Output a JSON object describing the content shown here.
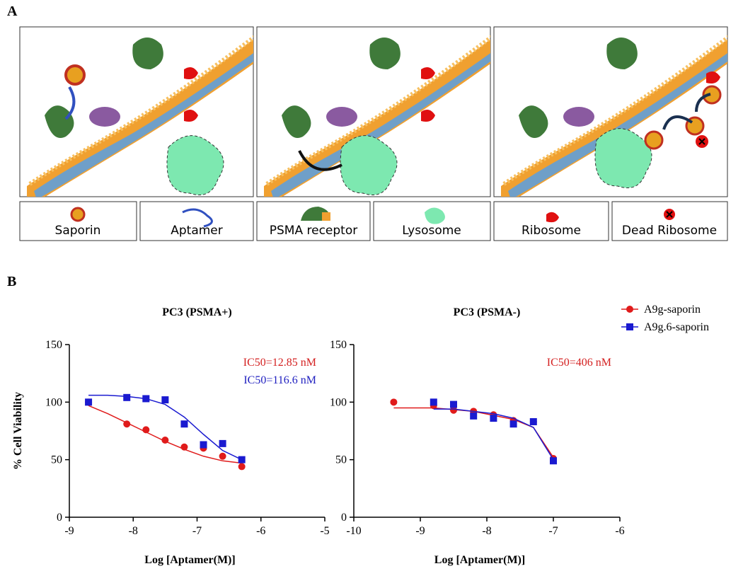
{
  "panel_labels": [
    "A",
    "B"
  ],
  "legend_items": [
    "Saporin",
    "Aptamer",
    "PSMA receptor",
    "Lysosome",
    "Ribosome",
    "Dead Ribosome"
  ],
  "chart_data": [
    {
      "type": "scatter",
      "title": "PC3 (PSMA+)",
      "x_label": "Log [Aptamer(M)]",
      "y_label": "% Cell Viability",
      "xlim": [
        -9,
        -5
      ],
      "xticks": [
        -9,
        -8,
        -7,
        -6,
        -5
      ],
      "ylim": [
        0,
        150
      ],
      "yticks": [
        0,
        50,
        100,
        150
      ],
      "annotations": [
        {
          "text": "IC50=12.85 nM",
          "color": "#d42020"
        },
        {
          "text": "IC50=116.6 nM",
          "color": "#2020c0"
        }
      ],
      "series": [
        {
          "color": "#e01b1b",
          "marker": "circle",
          "x": [
            -8.7,
            -8.1,
            -7.8,
            -7.5,
            -7.2,
            -6.9,
            -6.6,
            -6.3
          ],
          "values": [
            100,
            81,
            76,
            67,
            61,
            60,
            53,
            44
          ],
          "fit_x": [
            -8.7,
            -8.4,
            -8.1,
            -7.8,
            -7.5,
            -7.2,
            -6.9,
            -6.6,
            -6.3
          ],
          "fit_values": [
            97,
            90,
            82,
            74,
            66,
            59,
            53,
            49,
            47
          ]
        },
        {
          "color": "#1a1ad0",
          "marker": "square",
          "x": [
            -8.7,
            -8.1,
            -7.8,
            -7.5,
            -7.2,
            -6.9,
            -6.6,
            -6.3
          ],
          "values": [
            100,
            104,
            103,
            102,
            81,
            63,
            64,
            50
          ],
          "fit_x": [
            -8.7,
            -8.4,
            -8.1,
            -7.8,
            -7.5,
            -7.2,
            -6.9,
            -6.6,
            -6.3
          ],
          "fit_values": [
            106,
            106,
            105,
            103,
            98,
            87,
            72,
            58,
            50
          ]
        }
      ]
    },
    {
      "type": "scatter",
      "title": "PC3 (PSMA-)",
      "x_label": "Log [Aptamer(M)]",
      "xlim": [
        -10,
        -6
      ],
      "xticks": [
        -10,
        -9,
        -8,
        -7,
        -6
      ],
      "ylim": [
        0,
        150
      ],
      "yticks": [
        0,
        50,
        100,
        150
      ],
      "legend": "top-right",
      "annotations": [
        {
          "text": "IC50=406 nM",
          "color": "#d42020"
        }
      ],
      "series": [
        {
          "name": "A9g-saporin",
          "color": "#e01b1b",
          "marker": "circle",
          "x": [
            -9.4,
            -8.8,
            -8.5,
            -8.2,
            -7.9,
            -7.6,
            -7.3,
            -7.0
          ],
          "values": [
            100,
            97,
            93,
            92,
            89,
            84,
            83,
            51
          ],
          "fit_x": [
            -9.4,
            -8.8,
            -8.2,
            -7.6,
            -7.3,
            -7.0
          ],
          "fit_values": [
            95,
            95,
            92,
            85,
            78,
            52
          ]
        },
        {
          "name": "A9g.6-saporin",
          "color": "#1a1ad0",
          "marker": "square",
          "x": [
            -8.8,
            -8.5,
            -8.2,
            -7.9,
            -7.6,
            -7.3,
            -7.0
          ],
          "values": [
            100,
            98,
            88,
            86,
            81,
            83,
            49
          ],
          "fit_x": [
            -8.8,
            -8.5,
            -7.9,
            -7.6,
            -7.3,
            -7.0
          ],
          "fit_values": [
            94,
            94,
            90,
            86,
            78,
            50
          ]
        }
      ]
    }
  ]
}
